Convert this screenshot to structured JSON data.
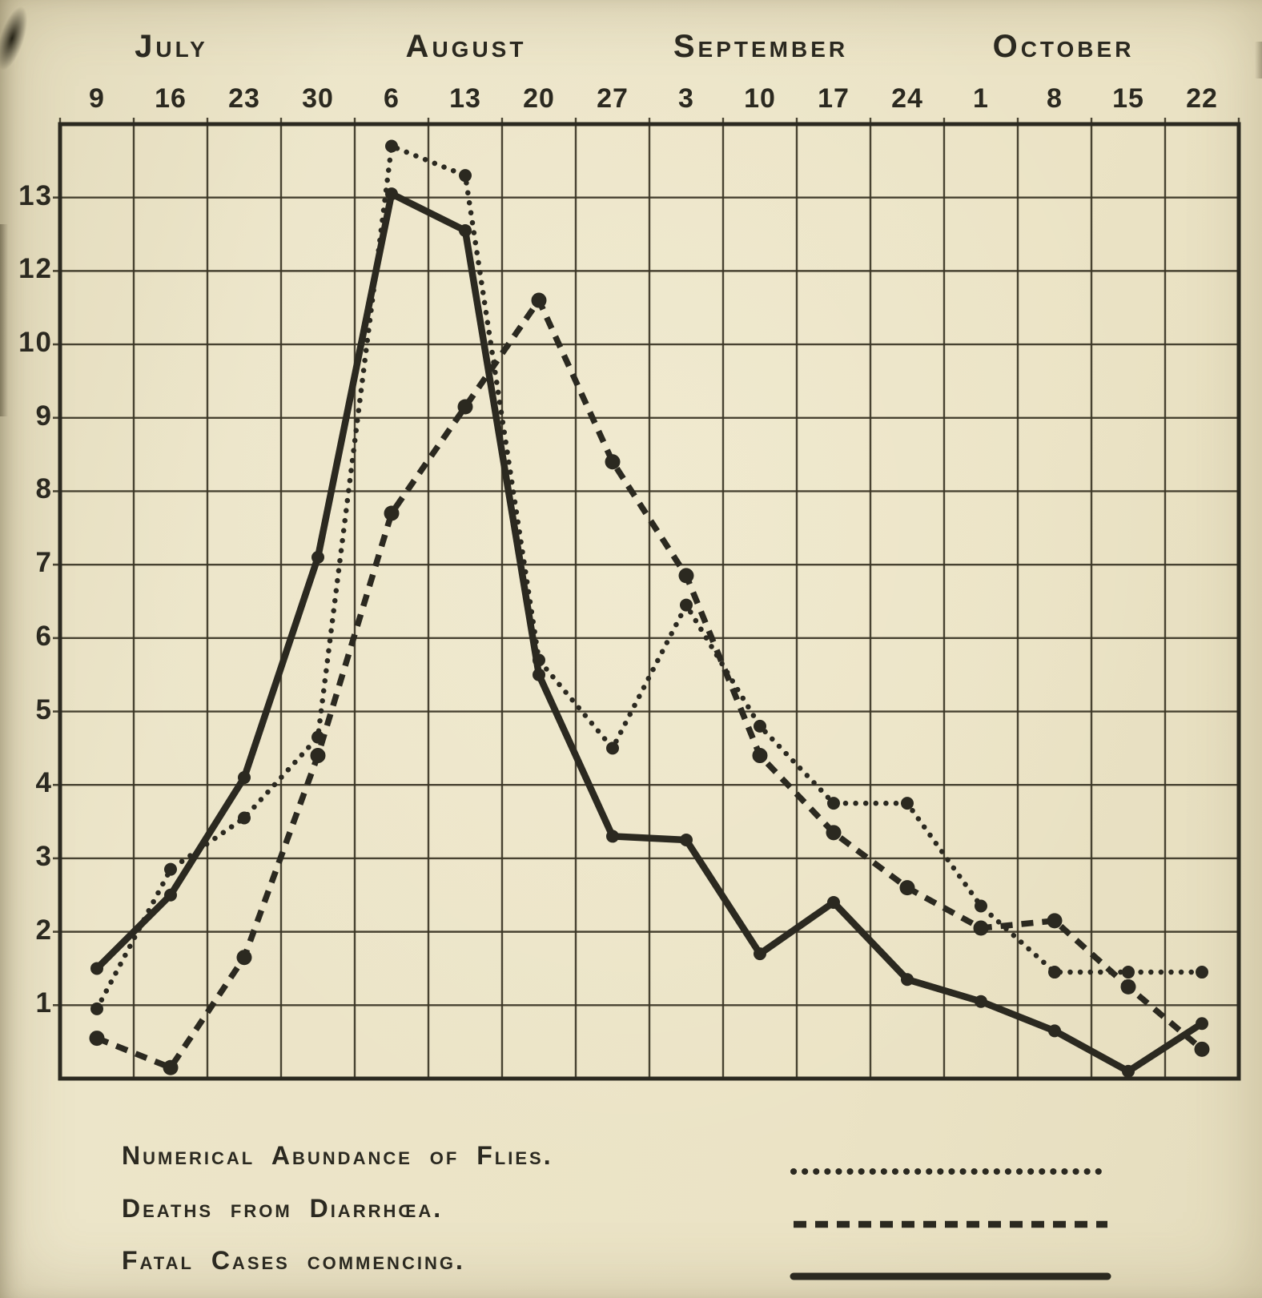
{
  "paper_color": "#e9e1c3",
  "ink_color": "#2b2920",
  "chart_data": {
    "type": "line",
    "title": "",
    "x": [
      "Jul 9",
      "Jul 16",
      "Jul 23",
      "Jul 30",
      "Aug 6",
      "Aug 13",
      "Aug 20",
      "Aug 27",
      "Sep 3",
      "Sep 10",
      "Sep 17",
      "Sep 24",
      "Oct 1",
      "Oct 8",
      "Oct 15",
      "Oct 22"
    ],
    "x_axis": {
      "months": [
        {
          "label": "July",
          "days": [
            "9",
            "16",
            "23",
            "30"
          ]
        },
        {
          "label": "August",
          "days": [
            "6",
            "13",
            "20",
            "27"
          ]
        },
        {
          "label": "September",
          "days": [
            "3",
            "10",
            "17",
            "24"
          ]
        },
        {
          "label": "October",
          "days": [
            "1",
            "8",
            "15",
            "22"
          ]
        }
      ]
    },
    "y_axis": {
      "tick_labels_top_to_bottom": [
        "13",
        "12",
        "10",
        "9",
        "8",
        "7",
        "6",
        "5",
        "4",
        "3",
        "2",
        "1"
      ],
      "ylim": [
        0,
        14
      ],
      "note": "printed scale skips 11: twelve evenly spaced gridlines labelled 13,12,10,9,8,7,6,5,4,3,2,1"
    },
    "grid": true,
    "legend_position": "below",
    "series": [
      {
        "name": "Numerical Abundance of Flies.",
        "line_style": "dotted",
        "values": [
          0.95,
          2.85,
          3.55,
          4.65,
          13.7,
          13.3,
          5.7,
          4.5,
          6.45,
          4.8,
          3.75,
          3.75,
          2.35,
          1.45,
          1.45,
          1.45
        ]
      },
      {
        "name": "Deaths from Diarrhœa.",
        "line_style": "dashed",
        "values": [
          0.55,
          0.15,
          1.65,
          4.4,
          7.7,
          9.15,
          11.2,
          8.4,
          6.85,
          4.4,
          3.35,
          2.6,
          2.05,
          2.15,
          1.25,
          0.4
        ]
      },
      {
        "name": "Fatal Cases commencing.",
        "line_style": "solid",
        "values": [
          1.5,
          2.5,
          4.1,
          7.1,
          13.05,
          12.55,
          5.5,
          3.3,
          3.25,
          1.7,
          2.4,
          1.35,
          1.05,
          0.65,
          0.1,
          0.75
        ]
      }
    ]
  }
}
